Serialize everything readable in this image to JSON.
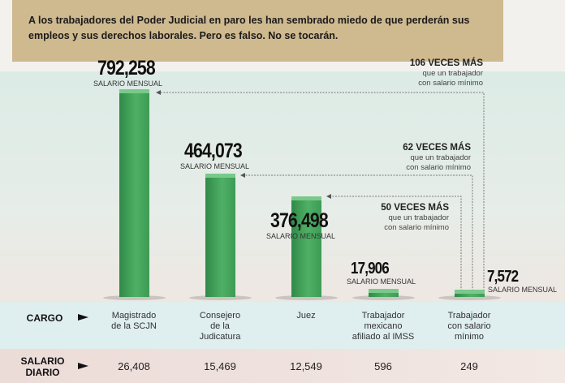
{
  "banner": {
    "text": "A los trabajadores del Poder Judicial en paro les han sembrado miedo de que perderán sus empleos y sus derechos laborales. Pero es falso. No se tocarán."
  },
  "chart_data": {
    "type": "bar",
    "categories": [
      "Magistrado de la SCJN",
      "Consejero de la Judicatura",
      "Juez",
      "Trabajador mexicano afiliado al IMSS",
      "Trabajador con salario mínimo"
    ],
    "series": [
      {
        "name": "SALARIO MENSUAL",
        "values": [
          792258,
          464073,
          376498,
          17906,
          7572
        ]
      }
    ],
    "value_labels": [
      "792,258",
      "464,073",
      "376,498",
      "17,906",
      "7,572"
    ],
    "value_sublabel": "SALARIO MENSUAL",
    "bar_color": "#3d9b55",
    "annotations": [
      {
        "title": "106 VECES MÁS",
        "line1": "que un trabajador",
        "line2": "con salario mínimo"
      },
      {
        "title": "62 VECES MÁS",
        "line1": "que un trabajador",
        "line2": "con salario mínimo"
      },
      {
        "title": "50 VECES MÁS",
        "line1": "que un trabajador",
        "line2": "con salario mínimo"
      }
    ]
  },
  "table": {
    "cargo_label": "CARGO",
    "cargo": [
      [
        "Magistrado",
        "de la SCJN"
      ],
      [
        "Consejero",
        "de la",
        "Judicatura"
      ],
      [
        "Juez"
      ],
      [
        "Trabajador",
        "mexicano",
        "afiliado al IMSS"
      ],
      [
        "Trabajador",
        "con salario",
        "mínimo"
      ]
    ],
    "diario_label": [
      "SALARIO",
      "DIARIO"
    ],
    "diario": [
      "26,408",
      "15,469",
      "12,549",
      "596",
      "249"
    ]
  }
}
